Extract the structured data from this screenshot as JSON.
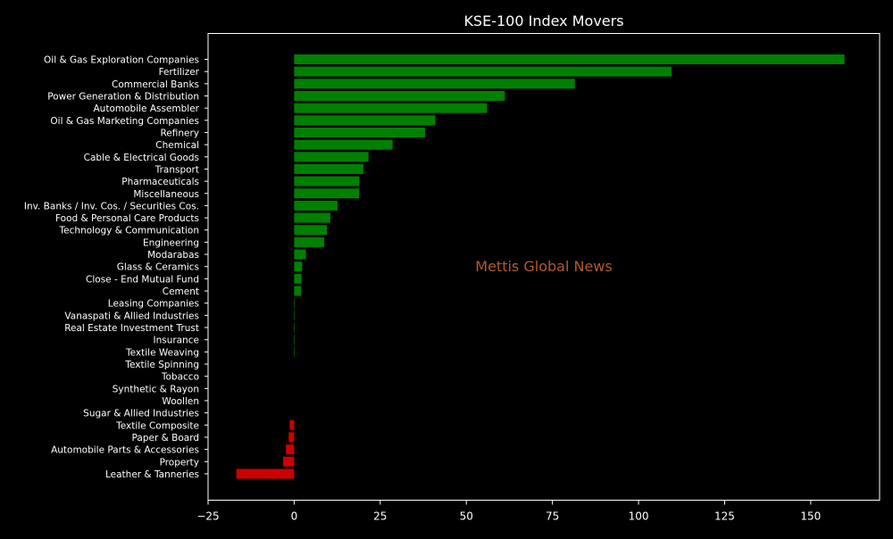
{
  "chart_data": {
    "type": "bar",
    "orientation": "horizontal",
    "title": "KSE-100 Index Movers",
    "xlabel": "",
    "ylabel": "",
    "xlim": [
      -25,
      170
    ],
    "xticks": [
      -25,
      0,
      25,
      50,
      75,
      100,
      125,
      150
    ],
    "grid": false,
    "legend": "none",
    "watermark": "Mettis Global News",
    "colors": {
      "background": "#000000",
      "axes": "#ffffff",
      "text": "#ffffff",
      "positive": "#008000",
      "negative": "#cc0000",
      "watermark": "#b5592e"
    },
    "categories": [
      "Oil & Gas Exploration Companies",
      "Fertilizer",
      "Commercial Banks",
      "Power Generation & Distribution",
      "Automobile Assembler",
      "Oil & Gas Marketing Companies",
      "Refinery",
      "Chemical",
      "Cable & Electrical Goods",
      "Transport",
      "Pharmaceuticals",
      "Miscellaneous",
      "Inv. Banks / Inv. Cos. / Securities Cos.",
      "Food & Personal Care Products",
      "Technology & Communication",
      "Engineering",
      "Modarabas",
      "Glass & Ceramics",
      "Close - End Mutual Fund",
      "Cement",
      "Leasing Companies",
      "Vanaspati & Allied Industries",
      "Real Estate Investment Trust",
      "Insurance",
      "Textile Weaving",
      "Textile Spinning",
      "Tobacco",
      "Synthetic & Rayon",
      "Woollen",
      "Sugar & Allied Industries",
      "Textile Composite",
      "Paper & Board",
      "Automobile Parts & Accessories",
      "Property",
      "Leather & Tanneries"
    ],
    "values": [
      159.8,
      109.6,
      81.5,
      61.2,
      56.0,
      41.0,
      38.0,
      28.6,
      21.6,
      20.1,
      18.9,
      18.9,
      12.6,
      10.5,
      9.5,
      8.7,
      3.4,
      2.3,
      2.1,
      2.0,
      0.15,
      0.15,
      0.12,
      0.1,
      0.08,
      0,
      0,
      0,
      0,
      0,
      -1.3,
      -1.6,
      -2.4,
      -3.2,
      -16.8
    ]
  }
}
